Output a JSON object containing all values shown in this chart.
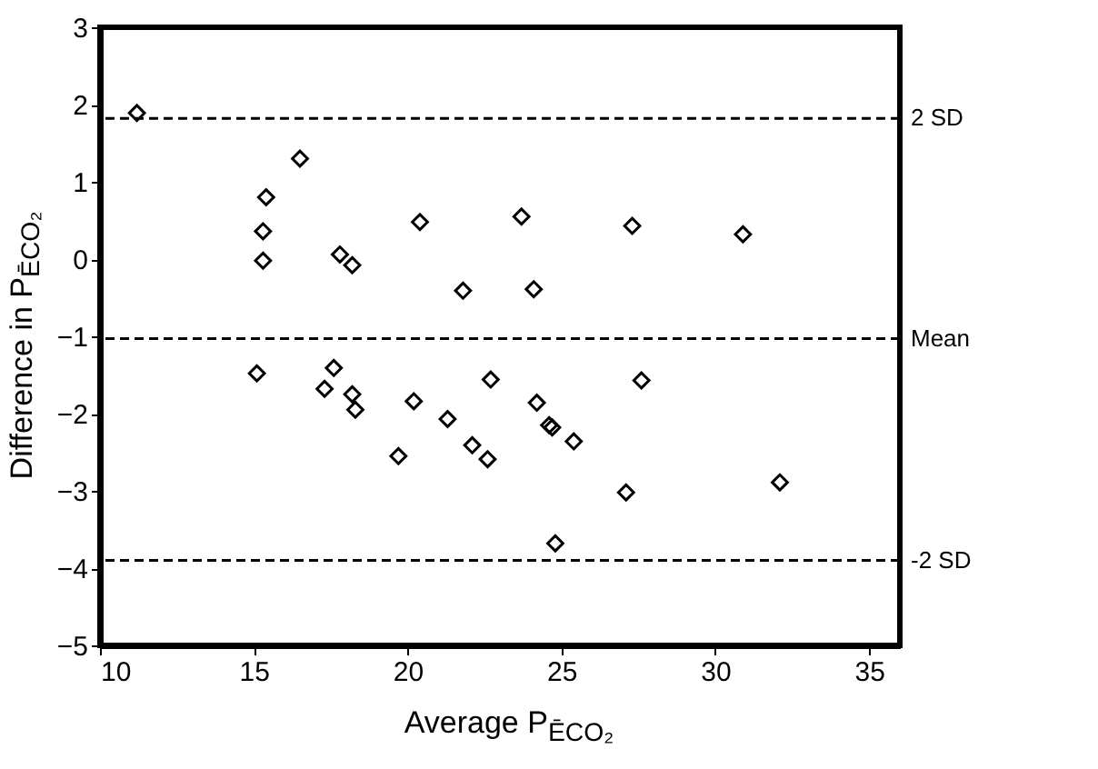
{
  "chart_data": {
    "type": "scatter",
    "xlabel": "Average P$_{ĒCO₂}$",
    "ylabel": "Difference in P$_{ĒCO₂}$",
    "x": [
      11.2,
      15.4,
      15.3,
      15.3,
      16.5,
      17.8,
      18.2,
      20.4,
      21.8,
      23.7,
      27.3,
      30.9,
      24.1,
      22.7,
      27.6,
      24.2,
      24.6,
      24.7,
      25.4,
      27.1,
      32.1,
      24.8,
      15.1,
      17.6,
      17.3,
      18.2,
      18.3,
      19.7,
      20.2,
      21.3,
      22.1,
      22.6
    ],
    "series": [
      {
        "color": "#000000",
        "values": [
          1.89,
          0.8,
          0.36,
          -0.02,
          1.3,
          0.06,
          -0.08,
          0.48,
          -0.41,
          0.55,
          0.43,
          0.32,
          -0.39,
          -1.56,
          -1.57,
          -1.86,
          -2.15,
          -2.18,
          -2.36,
          -3.02,
          -2.89,
          -3.68,
          -1.48,
          -1.41,
          -1.68,
          -1.75,
          -1.95,
          -2.55,
          -1.84,
          -2.07,
          -2.41,
          -2.59
        ]
      }
    ],
    "marker": "diamond",
    "grid": false,
    "xlim": [
      10,
      36
    ],
    "xticks": [
      10,
      15,
      20,
      25,
      30,
      35
    ],
    "ylim": [
      -5,
      3
    ],
    "yticks": [
      -5,
      -4,
      -3,
      -2,
      -1,
      0,
      1,
      2,
      3
    ],
    "ref_lines": [
      {
        "axis": "y",
        "value": 1.82,
        "label": "2 SD",
        "line_style": "dashed"
      },
      {
        "axis": "y",
        "value": -1.03,
        "label": "Mean",
        "line_style": "dashed"
      },
      {
        "axis": "y",
        "value": -3.9,
        "label": "-2 SD",
        "line_style": "dashed"
      }
    ]
  }
}
